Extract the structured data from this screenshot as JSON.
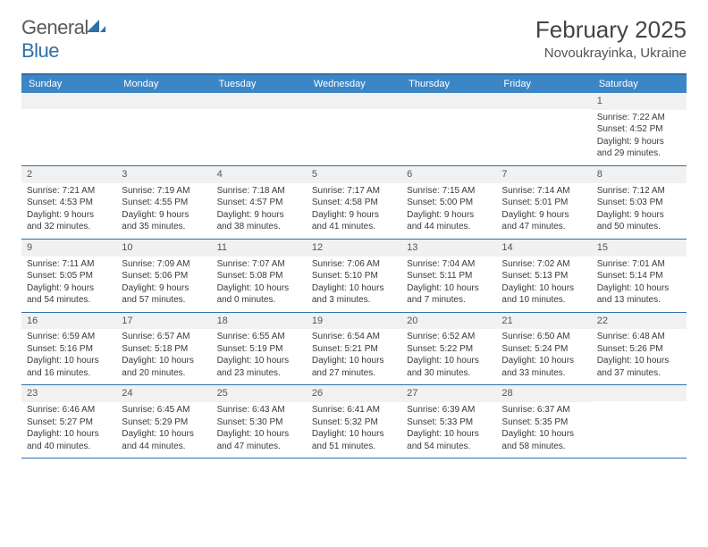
{
  "brand": {
    "part1": "General",
    "part2": "Blue"
  },
  "title": "February 2025",
  "location": "Novoukrayinka, Ukraine",
  "colors": {
    "accent": "#2f6fa8",
    "header_bg": "#3d86c6",
    "daynum_bg": "#f1f1f1",
    "text": "#3a3a3a"
  },
  "day_names": [
    "Sunday",
    "Monday",
    "Tuesday",
    "Wednesday",
    "Thursday",
    "Friday",
    "Saturday"
  ],
  "weeks": [
    [
      null,
      null,
      null,
      null,
      null,
      null,
      {
        "n": "1",
        "sr": "7:22 AM",
        "ss": "4:52 PM",
        "dl": "9 hours and 29 minutes."
      }
    ],
    [
      {
        "n": "2",
        "sr": "7:21 AM",
        "ss": "4:53 PM",
        "dl": "9 hours and 32 minutes."
      },
      {
        "n": "3",
        "sr": "7:19 AM",
        "ss": "4:55 PM",
        "dl": "9 hours and 35 minutes."
      },
      {
        "n": "4",
        "sr": "7:18 AM",
        "ss": "4:57 PM",
        "dl": "9 hours and 38 minutes."
      },
      {
        "n": "5",
        "sr": "7:17 AM",
        "ss": "4:58 PM",
        "dl": "9 hours and 41 minutes."
      },
      {
        "n": "6",
        "sr": "7:15 AM",
        "ss": "5:00 PM",
        "dl": "9 hours and 44 minutes."
      },
      {
        "n": "7",
        "sr": "7:14 AM",
        "ss": "5:01 PM",
        "dl": "9 hours and 47 minutes."
      },
      {
        "n": "8",
        "sr": "7:12 AM",
        "ss": "5:03 PM",
        "dl": "9 hours and 50 minutes."
      }
    ],
    [
      {
        "n": "9",
        "sr": "7:11 AM",
        "ss": "5:05 PM",
        "dl": "9 hours and 54 minutes."
      },
      {
        "n": "10",
        "sr": "7:09 AM",
        "ss": "5:06 PM",
        "dl": "9 hours and 57 minutes."
      },
      {
        "n": "11",
        "sr": "7:07 AM",
        "ss": "5:08 PM",
        "dl": "10 hours and 0 minutes."
      },
      {
        "n": "12",
        "sr": "7:06 AM",
        "ss": "5:10 PM",
        "dl": "10 hours and 3 minutes."
      },
      {
        "n": "13",
        "sr": "7:04 AM",
        "ss": "5:11 PM",
        "dl": "10 hours and 7 minutes."
      },
      {
        "n": "14",
        "sr": "7:02 AM",
        "ss": "5:13 PM",
        "dl": "10 hours and 10 minutes."
      },
      {
        "n": "15",
        "sr": "7:01 AM",
        "ss": "5:14 PM",
        "dl": "10 hours and 13 minutes."
      }
    ],
    [
      {
        "n": "16",
        "sr": "6:59 AM",
        "ss": "5:16 PM",
        "dl": "10 hours and 16 minutes."
      },
      {
        "n": "17",
        "sr": "6:57 AM",
        "ss": "5:18 PM",
        "dl": "10 hours and 20 minutes."
      },
      {
        "n": "18",
        "sr": "6:55 AM",
        "ss": "5:19 PM",
        "dl": "10 hours and 23 minutes."
      },
      {
        "n": "19",
        "sr": "6:54 AM",
        "ss": "5:21 PM",
        "dl": "10 hours and 27 minutes."
      },
      {
        "n": "20",
        "sr": "6:52 AM",
        "ss": "5:22 PM",
        "dl": "10 hours and 30 minutes."
      },
      {
        "n": "21",
        "sr": "6:50 AM",
        "ss": "5:24 PM",
        "dl": "10 hours and 33 minutes."
      },
      {
        "n": "22",
        "sr": "6:48 AM",
        "ss": "5:26 PM",
        "dl": "10 hours and 37 minutes."
      }
    ],
    [
      {
        "n": "23",
        "sr": "6:46 AM",
        "ss": "5:27 PM",
        "dl": "10 hours and 40 minutes."
      },
      {
        "n": "24",
        "sr": "6:45 AM",
        "ss": "5:29 PM",
        "dl": "10 hours and 44 minutes."
      },
      {
        "n": "25",
        "sr": "6:43 AM",
        "ss": "5:30 PM",
        "dl": "10 hours and 47 minutes."
      },
      {
        "n": "26",
        "sr": "6:41 AM",
        "ss": "5:32 PM",
        "dl": "10 hours and 51 minutes."
      },
      {
        "n": "27",
        "sr": "6:39 AM",
        "ss": "5:33 PM",
        "dl": "10 hours and 54 minutes."
      },
      {
        "n": "28",
        "sr": "6:37 AM",
        "ss": "5:35 PM",
        "dl": "10 hours and 58 minutes."
      },
      null
    ]
  ],
  "labels": {
    "sunrise": "Sunrise:",
    "sunset": "Sunset:",
    "daylight": "Daylight:"
  }
}
